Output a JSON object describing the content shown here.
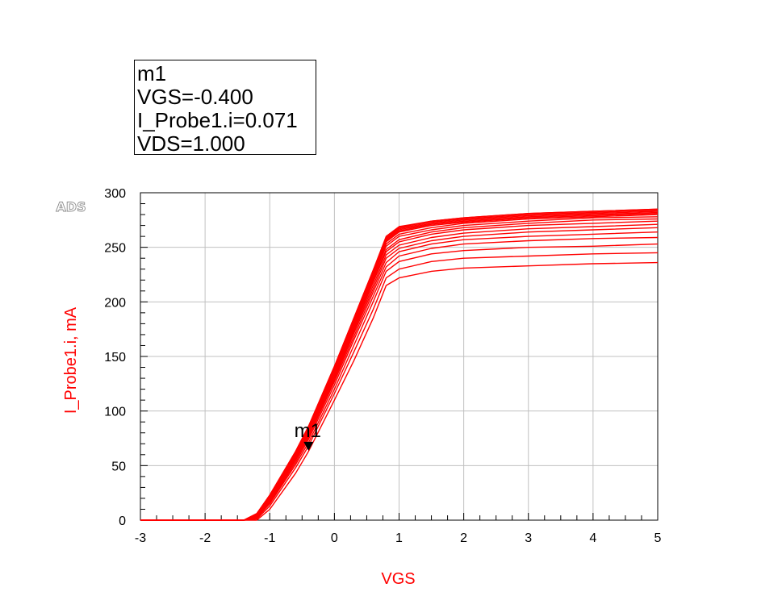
{
  "watermark": "ADS",
  "marker": {
    "name": "m1",
    "lines": [
      "m1",
      "VGS=-0.400",
      "I_Probe1.i=0.071",
      "VDS=1.000"
    ],
    "vgs": -0.4,
    "value_mA": 71
  },
  "chart_data": {
    "type": "line",
    "title": "",
    "xlabel": "VGS",
    "ylabel": "I_Probe1.i, mA",
    "xlim": [
      -3,
      5
    ],
    "ylim": [
      0,
      300
    ],
    "x_ticks": [
      -3,
      -2,
      -1,
      0,
      1,
      2,
      3,
      4,
      5
    ],
    "y_ticks": [
      0,
      50,
      100,
      150,
      200,
      250,
      300
    ],
    "grid": true,
    "color": "#ff0000",
    "x": [
      -3,
      -1.4,
      -1.2,
      -1.0,
      -0.6,
      -0.4,
      0,
      0.3,
      0.6,
      0.8,
      1.0,
      1.5,
      2,
      3,
      4,
      5
    ],
    "series": [
      {
        "values": [
          0,
          0,
          0,
          10,
          43,
          63,
          110,
          146,
          185,
          215,
          222,
          228,
          231,
          233,
          235,
          236
        ]
      },
      {
        "values": [
          0,
          0,
          1,
          13,
          48,
          68,
          116,
          154,
          193,
          222,
          230,
          237,
          240,
          242,
          244,
          245
        ]
      },
      {
        "values": [
          0,
          0,
          2,
          15,
          51,
          71,
          120,
          160,
          200,
          228,
          237,
          244,
          247,
          250,
          251,
          253
        ]
      },
      {
        "values": [
          0,
          0,
          2,
          16,
          53,
          74,
          124,
          165,
          205,
          232,
          242,
          249,
          253,
          256,
          258,
          259
        ]
      },
      {
        "values": [
          0,
          0,
          3,
          17,
          55,
          76,
          127,
          168,
          209,
          236,
          246,
          253,
          257,
          260,
          262,
          264
        ]
      },
      {
        "values": [
          0,
          0,
          3,
          18,
          56,
          77,
          129,
          171,
          212,
          240,
          249,
          256,
          260,
          264,
          266,
          268
        ]
      },
      {
        "values": [
          0,
          0,
          4,
          19,
          57,
          79,
          131,
          173,
          215,
          243,
          252,
          259,
          263,
          267,
          269,
          271
        ]
      },
      {
        "values": [
          0,
          0,
          4,
          20,
          58,
          80,
          133,
          175,
          218,
          246,
          255,
          262,
          266,
          270,
          272,
          274
        ]
      },
      {
        "values": [
          0,
          0,
          4,
          20,
          59,
          81,
          134,
          177,
          220,
          248,
          257,
          264,
          268,
          272,
          275,
          276
        ]
      },
      {
        "values": [
          0,
          0,
          5,
          21,
          60,
          82,
          136,
          179,
          222,
          251,
          260,
          266,
          270,
          274,
          277,
          278
        ]
      },
      {
        "values": [
          0,
          0,
          5,
          21,
          60,
          83,
          137,
          180,
          224,
          253,
          262,
          268,
          272,
          276,
          278,
          280
        ]
      },
      {
        "values": [
          0,
          0,
          5,
          22,
          61,
          84,
          138,
          181,
          225,
          255,
          264,
          270,
          273,
          277,
          279,
          281
        ]
      },
      {
        "values": [
          0,
          0,
          5,
          22,
          61,
          84,
          139,
          182,
          226,
          256,
          265,
          271,
          274,
          278,
          280,
          282
        ]
      },
      {
        "values": [
          0,
          0,
          6,
          22,
          62,
          85,
          139,
          183,
          227,
          257,
          266,
          272,
          275,
          279,
          281,
          283
        ]
      },
      {
        "values": [
          0,
          0,
          6,
          23,
          62,
          85,
          140,
          184,
          228,
          258,
          267,
          273,
          276,
          280,
          282,
          284
        ]
      },
      {
        "values": [
          0,
          0,
          6,
          23,
          63,
          86,
          141,
          185,
          229,
          259,
          268,
          274,
          277,
          281,
          283,
          285
        ]
      },
      {
        "values": [
          0,
          0,
          6,
          23,
          63,
          86,
          141,
          185,
          229,
          260,
          269,
          274,
          277,
          281,
          283,
          285
        ]
      }
    ]
  }
}
